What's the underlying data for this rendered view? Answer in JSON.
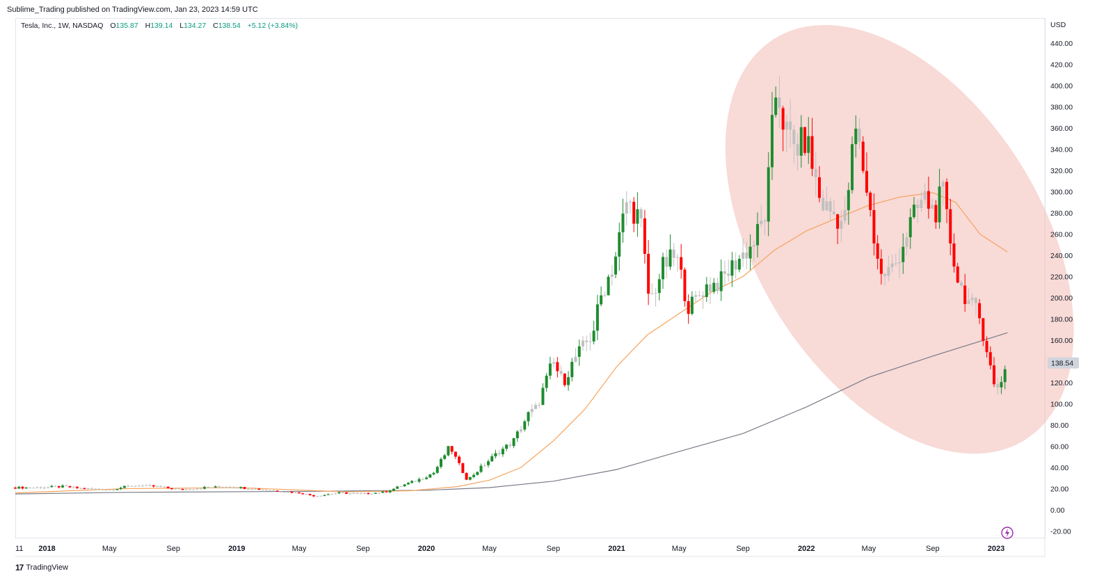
{
  "publisher_line": "Sublime_Trading published on TradingView.com, Jan 23, 2023 14:59 UTC",
  "legend": {
    "symbol": "Tesla, Inc., 1W, NASDAQ",
    "o_label": "O",
    "o_value": "135.87",
    "h_label": "H",
    "h_value": "139.14",
    "l_label": "L",
    "l_value": "134.27",
    "c_label": "C",
    "c_value": "138.54",
    "change": "+5.12 (+3.84%)"
  },
  "footer": {
    "brand_logo": "17",
    "brand": "TradingView"
  },
  "colors": {
    "up": "#1e8c30",
    "down": "#ff0000",
    "neutral": "#c0c0c0",
    "ma_short": "#f7a35c",
    "ma_long": "#787b86",
    "highlight": "#f4c6c2",
    "axis_text": "#131722",
    "price_badge_bg": "#d1d4dc"
  },
  "chart_data": {
    "type": "candlestick",
    "title": "",
    "currency_label": "USD",
    "ylim": [
      -25,
      450
    ],
    "y_ticks": [
      -20,
      0,
      20,
      40,
      60,
      80,
      100,
      120,
      140,
      160,
      180,
      200,
      220,
      240,
      260,
      280,
      300,
      320,
      340,
      360,
      380,
      400,
      420,
      440
    ],
    "x_ticks": [
      {
        "label": "11",
        "date": "2017-11-01",
        "bold": false
      },
      {
        "label": "2018",
        "date": "2018-01-01",
        "bold": true
      },
      {
        "label": "May",
        "date": "2018-05-01",
        "bold": false
      },
      {
        "label": "Sep",
        "date": "2018-09-01",
        "bold": false
      },
      {
        "label": "2019",
        "date": "2019-01-01",
        "bold": true
      },
      {
        "label": "May",
        "date": "2019-05-01",
        "bold": false
      },
      {
        "label": "Sep",
        "date": "2019-09-01",
        "bold": false
      },
      {
        "label": "2020",
        "date": "2020-01-01",
        "bold": true
      },
      {
        "label": "May",
        "date": "2020-05-01",
        "bold": false
      },
      {
        "label": "Sep",
        "date": "2020-09-01",
        "bold": false
      },
      {
        "label": "2021",
        "date": "2021-01-01",
        "bold": true
      },
      {
        "label": "May",
        "date": "2021-05-01",
        "bold": false
      },
      {
        "label": "Sep",
        "date": "2021-09-01",
        "bold": false
      },
      {
        "label": "2022",
        "date": "2022-01-01",
        "bold": true
      },
      {
        "label": "May",
        "date": "2022-05-01",
        "bold": false
      },
      {
        "label": "Sep",
        "date": "2022-09-01",
        "bold": false
      },
      {
        "label": "2023",
        "date": "2023-01-01",
        "bold": true
      }
    ],
    "last_price": "138.54",
    "close_series": [
      {
        "date": "2017-11-01",
        "close": 21
      },
      {
        "date": "2017-12-15",
        "close": 21
      },
      {
        "date": "2018-02-01",
        "close": 22
      },
      {
        "date": "2018-03-15",
        "close": 20
      },
      {
        "date": "2018-05-01",
        "close": 19
      },
      {
        "date": "2018-06-15",
        "close": 23
      },
      {
        "date": "2018-08-01",
        "close": 22
      },
      {
        "date": "2018-09-15",
        "close": 19
      },
      {
        "date": "2018-11-01",
        "close": 21
      },
      {
        "date": "2018-12-15",
        "close": 22
      },
      {
        "date": "2019-02-01",
        "close": 20
      },
      {
        "date": "2019-03-15",
        "close": 18
      },
      {
        "date": "2019-05-01",
        "close": 16
      },
      {
        "date": "2019-06-01",
        "close": 13
      },
      {
        "date": "2019-07-15",
        "close": 16
      },
      {
        "date": "2019-09-01",
        "close": 15
      },
      {
        "date": "2019-10-15",
        "close": 17
      },
      {
        "date": "2019-11-15",
        "close": 23
      },
      {
        "date": "2019-12-15",
        "close": 28
      },
      {
        "date": "2020-01-15",
        "close": 35
      },
      {
        "date": "2020-02-15",
        "close": 60
      },
      {
        "date": "2020-03-01",
        "close": 45
      },
      {
        "date": "2020-03-20",
        "close": 28
      },
      {
        "date": "2020-04-15",
        "close": 40
      },
      {
        "date": "2020-05-15",
        "close": 53
      },
      {
        "date": "2020-06-15",
        "close": 64
      },
      {
        "date": "2020-07-15",
        "close": 90
      },
      {
        "date": "2020-08-01",
        "close": 97
      },
      {
        "date": "2020-08-31",
        "close": 140
      },
      {
        "date": "2020-09-20",
        "close": 120
      },
      {
        "date": "2020-10-15",
        "close": 145
      },
      {
        "date": "2020-11-15",
        "close": 165
      },
      {
        "date": "2020-12-01",
        "close": 200
      },
      {
        "date": "2020-12-28",
        "close": 235
      },
      {
        "date": "2021-01-20",
        "close": 290
      },
      {
        "date": "2021-02-15",
        "close": 275
      },
      {
        "date": "2021-03-05",
        "close": 195
      },
      {
        "date": "2021-04-01",
        "close": 230
      },
      {
        "date": "2021-04-25",
        "close": 240
      },
      {
        "date": "2021-05-20",
        "close": 190
      },
      {
        "date": "2021-06-20",
        "close": 210
      },
      {
        "date": "2021-07-20",
        "close": 215
      },
      {
        "date": "2021-08-20",
        "close": 235
      },
      {
        "date": "2021-09-20",
        "close": 250
      },
      {
        "date": "2021-10-15",
        "close": 280
      },
      {
        "date": "2021-10-29",
        "close": 370
      },
      {
        "date": "2021-11-05",
        "close": 400
      },
      {
        "date": "2021-11-20",
        "close": 360
      },
      {
        "date": "2021-12-10",
        "close": 340
      },
      {
        "date": "2022-01-01",
        "close": 350
      },
      {
        "date": "2022-01-28",
        "close": 290
      },
      {
        "date": "2022-02-20",
        "close": 280
      },
      {
        "date": "2022-03-15",
        "close": 270
      },
      {
        "date": "2022-04-05",
        "close": 360
      },
      {
        "date": "2022-04-25",
        "close": 310
      },
      {
        "date": "2022-05-10",
        "close": 260
      },
      {
        "date": "2022-05-25",
        "close": 220
      },
      {
        "date": "2022-06-20",
        "close": 230
      },
      {
        "date": "2022-07-20",
        "close": 270
      },
      {
        "date": "2022-08-15",
        "close": 295
      },
      {
        "date": "2022-09-05",
        "close": 280
      },
      {
        "date": "2022-09-20",
        "close": 300
      },
      {
        "date": "2022-10-01",
        "close": 265
      },
      {
        "date": "2022-10-20",
        "close": 215
      },
      {
        "date": "2022-11-10",
        "close": 195
      },
      {
        "date": "2022-11-28",
        "close": 185
      },
      {
        "date": "2022-12-15",
        "close": 150
      },
      {
        "date": "2022-12-30",
        "close": 112
      },
      {
        "date": "2023-01-10",
        "close": 122
      },
      {
        "date": "2023-01-23",
        "close": 138.54
      }
    ],
    "ma_short_series": [
      {
        "date": "2017-11-01",
        "value": 16
      },
      {
        "date": "2018-06-01",
        "value": 20
      },
      {
        "date": "2019-01-01",
        "value": 21
      },
      {
        "date": "2019-08-01",
        "value": 17
      },
      {
        "date": "2019-12-01",
        "value": 18
      },
      {
        "date": "2020-03-01",
        "value": 22
      },
      {
        "date": "2020-05-01",
        "value": 28
      },
      {
        "date": "2020-07-01",
        "value": 40
      },
      {
        "date": "2020-09-01",
        "value": 65
      },
      {
        "date": "2020-11-01",
        "value": 95
      },
      {
        "date": "2021-01-01",
        "value": 135
      },
      {
        "date": "2021-03-01",
        "value": 165
      },
      {
        "date": "2021-05-01",
        "value": 185
      },
      {
        "date": "2021-07-01",
        "value": 205
      },
      {
        "date": "2021-09-01",
        "value": 220
      },
      {
        "date": "2021-11-01",
        "value": 245
      },
      {
        "date": "2022-01-01",
        "value": 263
      },
      {
        "date": "2022-03-01",
        "value": 275
      },
      {
        "date": "2022-05-01",
        "value": 287
      },
      {
        "date": "2022-07-01",
        "value": 295
      },
      {
        "date": "2022-09-01",
        "value": 299
      },
      {
        "date": "2022-10-15",
        "value": 290
      },
      {
        "date": "2022-12-01",
        "value": 260
      },
      {
        "date": "2023-01-23",
        "value": 243
      }
    ],
    "ma_long_series": [
      {
        "date": "2017-11-01",
        "value": 15
      },
      {
        "date": "2018-06-01",
        "value": 16.5
      },
      {
        "date": "2019-06-01",
        "value": 17.5
      },
      {
        "date": "2020-01-01",
        "value": 18.5
      },
      {
        "date": "2020-05-01",
        "value": 21
      },
      {
        "date": "2020-09-01",
        "value": 27
      },
      {
        "date": "2021-01-01",
        "value": 38
      },
      {
        "date": "2021-05-01",
        "value": 55
      },
      {
        "date": "2021-09-01",
        "value": 72
      },
      {
        "date": "2022-01-01",
        "value": 97
      },
      {
        "date": "2022-05-01",
        "value": 125
      },
      {
        "date": "2022-09-01",
        "value": 145
      },
      {
        "date": "2023-01-23",
        "value": 167
      }
    ],
    "highlight_region": {
      "shape": "ellipse",
      "from": "2021-10-25",
      "to": "2023-02-10",
      "price_low": 90,
      "price_high": 420
    }
  }
}
